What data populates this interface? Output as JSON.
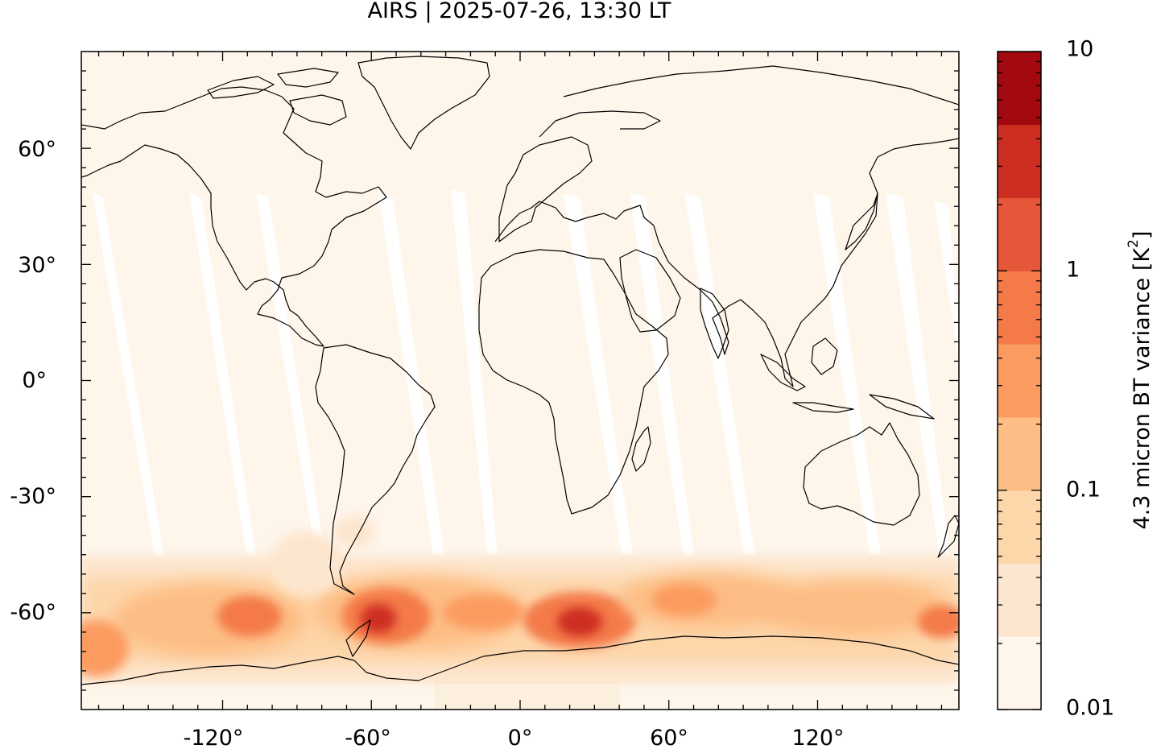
{
  "title": "AIRS | 2025-07-26, 13:30 LT",
  "map": {
    "projection": "equirectangular",
    "lon_range": [
      -177,
      177
    ],
    "lat_range": [
      -85,
      85
    ],
    "x_ticks": [
      "-120°",
      "-60°",
      "0°",
      "60°",
      "120°"
    ],
    "y_ticks": [
      "60°",
      "30°",
      "0°",
      "-30°",
      "-60°"
    ],
    "background_color": "#fef5eb",
    "swath_gap_color": "#ffffff",
    "coastline_color": "#000000"
  },
  "colorbar": {
    "label_prefix": "4.3 micron BT variance [K",
    "label_sup": "2",
    "label_suffix": "]",
    "scale": "log",
    "range": [
      0.01,
      10
    ],
    "tick_labels": [
      "10",
      "1",
      "0.1",
      "0.01"
    ],
    "colors": [
      "#fef5eb",
      "#fde6cf",
      "#fdd6aa",
      "#fdbd84",
      "#fc9b61",
      "#f47a4a",
      "#e65639",
      "#cc2e22",
      "#a20a0f"
    ]
  }
}
